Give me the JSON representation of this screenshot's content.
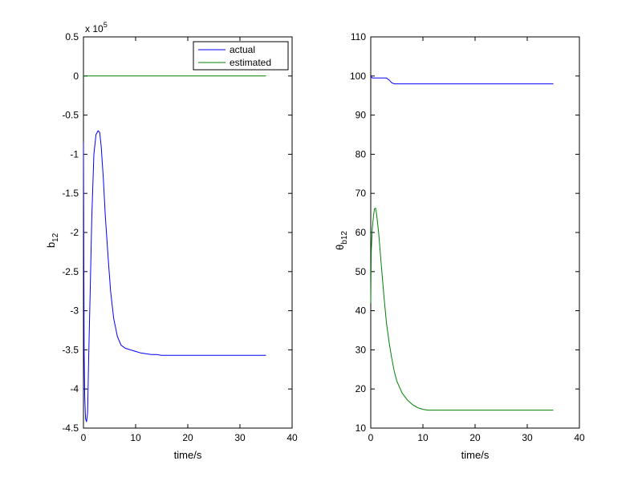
{
  "chart_data": [
    {
      "type": "line",
      "xlabel": "time/s",
      "ylabel": "b",
      "ylabel_sub": "12",
      "exponent_label": "x 10",
      "exponent_power": "5",
      "xlim": [
        0,
        40
      ],
      "ylim": [
        -4.5,
        0.5
      ],
      "xticks": [
        "0",
        "10",
        "20",
        "30",
        "40"
      ],
      "yticks": [
        "-4.5",
        "-4",
        "-3.5",
        "-3",
        "-2.5",
        "-2",
        "-1.5",
        "-1",
        "-0.5",
        "0",
        "0.5"
      ],
      "legend": {
        "location": "top-right",
        "entries": [
          "actual",
          "estimated"
        ]
      },
      "series": [
        {
          "name": "actual",
          "color": "#0000ff",
          "x": [
            0,
            0.12,
            0.25,
            0.4,
            0.6,
            0.8,
            1.0,
            1.3,
            1.6,
            2.0,
            2.4,
            2.8,
            3.1,
            3.4,
            3.8,
            4.2,
            4.7,
            5.2,
            5.8,
            6.5,
            7.2,
            8.0,
            9.0,
            10.0,
            11.0,
            12.0,
            13.0,
            14.0,
            15.0,
            20.0,
            25.0,
            30.0,
            35.0
          ],
          "y": [
            -0.85,
            -3.5,
            -4.1,
            -4.38,
            -4.42,
            -4.3,
            -3.6,
            -2.7,
            -1.8,
            -1.0,
            -0.75,
            -0.7,
            -0.72,
            -0.9,
            -1.3,
            -1.8,
            -2.3,
            -2.75,
            -3.1,
            -3.33,
            -3.44,
            -3.48,
            -3.5,
            -3.52,
            -3.54,
            -3.55,
            -3.56,
            -3.56,
            -3.57,
            -3.57,
            -3.57,
            -3.57,
            -3.57
          ]
        },
        {
          "name": "estimated",
          "color": "#008000",
          "x": [
            0,
            35
          ],
          "y": [
            0,
            0
          ]
        }
      ]
    },
    {
      "type": "line",
      "xlabel": "time/s",
      "ylabel": "θ",
      "ylabel_sub": "b12",
      "xlim": [
        0,
        40
      ],
      "ylim": [
        10,
        110
      ],
      "xticks": [
        "0",
        "10",
        "20",
        "30",
        "40"
      ],
      "yticks": [
        "10",
        "20",
        "30",
        "40",
        "50",
        "60",
        "70",
        "80",
        "90",
        "100",
        "110"
      ],
      "series": [
        {
          "color": "#0000ff",
          "x": [
            0,
            0.3,
            1.0,
            2.0,
            3.0,
            3.5,
            4.0,
            4.5,
            6.0,
            10.0,
            20.0,
            30.0,
            35.0
          ],
          "y": [
            100,
            99.5,
            99.5,
            99.5,
            99.5,
            99.0,
            98.3,
            98.0,
            98.0,
            98.0,
            98.0,
            98.0,
            98.0
          ]
        },
        {
          "color": "#008000",
          "x": [
            0,
            0.1,
            0.3,
            0.5,
            0.7,
            0.9,
            1.1,
            1.5,
            2.0,
            2.5,
            3.0,
            3.5,
            4.0,
            4.5,
            5.0,
            6.0,
            7.0,
            8.0,
            9.0,
            10.0,
            11.0,
            12.0,
            15.0,
            20.0,
            25.0,
            30.0,
            35.0
          ],
          "y": [
            42,
            55,
            61,
            64,
            66,
            66.2,
            65,
            60,
            52,
            44,
            37,
            32,
            28,
            24.5,
            22,
            19,
            17.2,
            16,
            15.2,
            14.8,
            14.6,
            14.6,
            14.6,
            14.6,
            14.6,
            14.6,
            14.6
          ]
        }
      ]
    }
  ]
}
